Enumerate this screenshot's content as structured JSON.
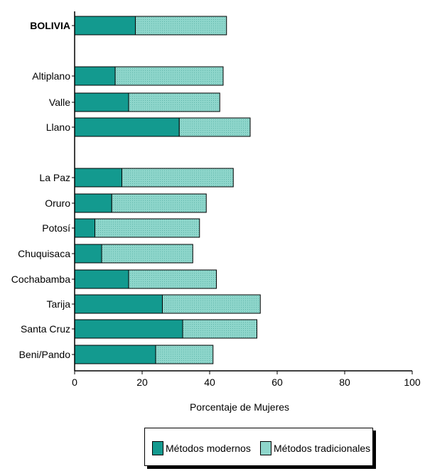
{
  "chart_data": {
    "type": "bar",
    "stacked": true,
    "orientation": "horizontal",
    "categories": [
      "BOLIVIA",
      "Altiplano",
      "Valle",
      "Llano",
      "La Paz",
      "Oruro",
      "Potosí",
      "Chuquisaca",
      "Cochabamba",
      "Tarija",
      "Santa Cruz",
      "Beni/Pando"
    ],
    "series": [
      {
        "name": "Métodos modernos",
        "values": [
          18,
          12,
          16,
          31,
          14,
          11,
          6,
          8,
          16,
          26,
          32,
          24
        ]
      },
      {
        "name": "Métodos tradicionales",
        "values": [
          27,
          32,
          27,
          21,
          33,
          28,
          31,
          27,
          26,
          29,
          22,
          17
        ]
      }
    ],
    "xlabel": "Porcentaje de Mujeres",
    "xlim": [
      0,
      100
    ],
    "xticks": [
      0,
      20,
      40,
      60,
      80,
      100
    ],
    "colors": {
      "modern": "#139a8f",
      "traditional": "#8ed6cb",
      "axis": "#000000"
    },
    "legend_position": "bottom"
  }
}
